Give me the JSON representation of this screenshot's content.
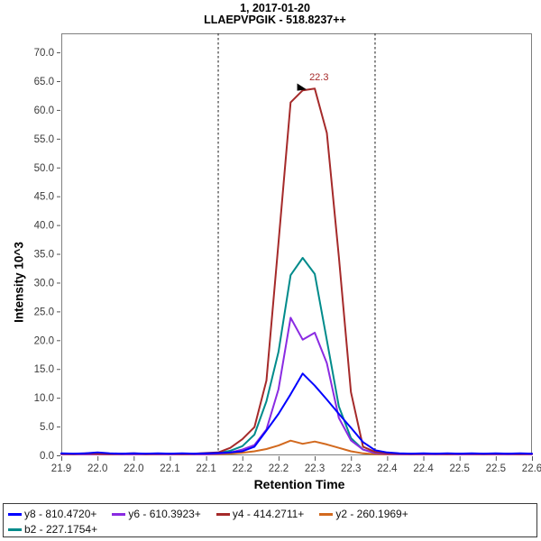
{
  "title": {
    "line1": "1, 2017-01-20",
    "line2": "LLAEPVPGIK - 518.8237++"
  },
  "axes": {
    "x": {
      "label": "Retention Time",
      "min": 21.9,
      "max": 22.55,
      "tick_step": 0.05,
      "tick_labels": [
        "21.9",
        "22.0",
        "22.0",
        "22.1",
        "22.1",
        "22.2",
        "22.2",
        "22.3",
        "22.3",
        "22.4",
        "22.4",
        "22.5",
        "22.5",
        "22.6"
      ]
    },
    "y": {
      "label": "Intensity 10^3",
      "min": 0,
      "max": 73.3,
      "tick_step": 5,
      "tick_labels": [
        "0.0",
        "5.0",
        "10.0",
        "15.0",
        "20.0",
        "25.0",
        "30.0",
        "35.0",
        "40.0",
        "45.0",
        "50.0",
        "55.0",
        "60.0",
        "65.0",
        "70.0"
      ]
    }
  },
  "annotation": {
    "text": "22.3",
    "rt": 22.25,
    "value": 63.7,
    "color": "#A52A2A",
    "marker_color": "#000000"
  },
  "peak_boundaries": {
    "start": 22.1167,
    "end": 22.3333,
    "color": "#1a1a1a",
    "style": "dashed"
  },
  "legend": {
    "items": [
      {
        "id": "y8",
        "label": "y8 - 810.4720+",
        "color": "#0000FF",
        "row": 1
      },
      {
        "id": "y6",
        "label": "y6 - 610.3923+",
        "color": "#8A2BE2",
        "row": 1
      },
      {
        "id": "y4",
        "label": "y4 - 414.2711+",
        "color": "#A52A2A",
        "row": 1
      },
      {
        "id": "y2",
        "label": "y2 - 260.1969+",
        "color": "#D2691E",
        "row": 1
      },
      {
        "id": "b2",
        "label": "b2 - 227.1754+",
        "color": "#008B8B",
        "row": 2
      }
    ]
  },
  "chart_data": {
    "type": "line",
    "title": "1, 2017-01-20 / LLAEPVPGIK - 518.8237++",
    "xlabel": "Retention Time",
    "ylabel": "Intensity 10^3",
    "xlim": [
      21.9,
      22.55
    ],
    "ylim": [
      0,
      73.3
    ],
    "grid": false,
    "legend_position": "bottom",
    "x": [
      21.9,
      21.9167,
      21.9333,
      21.95,
      21.9667,
      21.9833,
      22.0,
      22.0167,
      22.0333,
      22.05,
      22.0667,
      22.0833,
      22.1,
      22.1167,
      22.1333,
      22.15,
      22.1667,
      22.1833,
      22.2,
      22.2167,
      22.2333,
      22.25,
      22.2667,
      22.2833,
      22.3,
      22.3167,
      22.3333,
      22.35,
      22.3667,
      22.3833,
      22.4,
      22.4167,
      22.4333,
      22.45,
      22.4667,
      22.4833,
      22.5,
      22.5167,
      22.5333,
      22.55
    ],
    "series": [
      {
        "name": "y8 - 810.4720+",
        "color": "#0000FF",
        "values": [
          0.35,
          0.3,
          0.35,
          0.5,
          0.35,
          0.3,
          0.35,
          0.3,
          0.35,
          0.3,
          0.35,
          0.3,
          0.35,
          0.4,
          0.5,
          0.7,
          1.5,
          4.3,
          7.2,
          10.6,
          14.2,
          12.1,
          9.7,
          7.2,
          4.8,
          2.3,
          0.9,
          0.5,
          0.35,
          0.3,
          0.35,
          0.3,
          0.35,
          0.3,
          0.35,
          0.3,
          0.35,
          0.3,
          0.35,
          0.3
        ]
      },
      {
        "name": "y6 - 610.3923+",
        "color": "#8A2BE2",
        "values": [
          0.2,
          0.2,
          0.2,
          0.2,
          0.2,
          0.2,
          0.2,
          0.2,
          0.2,
          0.2,
          0.2,
          0.2,
          0.2,
          0.3,
          0.5,
          1.0,
          1.8,
          4.5,
          11.5,
          23.9,
          20.1,
          21.3,
          16.0,
          6.5,
          2.6,
          1.0,
          0.4,
          0.25,
          0.2,
          0.2,
          0.2,
          0.2,
          0.2,
          0.2,
          0.2,
          0.2,
          0.2,
          0.2,
          0.2,
          0.2
        ]
      },
      {
        "name": "y4 - 414.2711+",
        "color": "#A52A2A",
        "values": [
          0.3,
          0.25,
          0.35,
          0.3,
          0.25,
          0.3,
          0.35,
          0.25,
          0.3,
          0.3,
          0.25,
          0.3,
          0.4,
          0.5,
          1.3,
          2.8,
          4.9,
          13.0,
          37.0,
          61.3,
          63.4,
          63.7,
          56.0,
          34.5,
          11.0,
          1.5,
          0.6,
          0.35,
          0.3,
          0.25,
          0.3,
          0.3,
          0.25,
          0.3,
          0.3,
          0.25,
          0.3,
          0.3,
          0.25,
          0.3
        ]
      },
      {
        "name": "y2 - 260.1969+",
        "color": "#D2691E",
        "values": [
          0.15,
          0.15,
          0.15,
          0.15,
          0.15,
          0.15,
          0.15,
          0.15,
          0.15,
          0.15,
          0.15,
          0.15,
          0.15,
          0.2,
          0.3,
          0.45,
          0.7,
          1.1,
          1.7,
          2.55,
          2.0,
          2.4,
          1.9,
          1.3,
          0.7,
          0.35,
          0.2,
          0.15,
          0.15,
          0.15,
          0.15,
          0.15,
          0.15,
          0.15,
          0.15,
          0.15,
          0.15,
          0.15,
          0.15,
          0.15
        ]
      },
      {
        "name": "b2 - 227.1754+",
        "color": "#008B8B",
        "values": [
          0.25,
          0.25,
          0.25,
          0.25,
          0.25,
          0.25,
          0.25,
          0.25,
          0.25,
          0.25,
          0.25,
          0.25,
          0.25,
          0.4,
          0.8,
          1.6,
          3.6,
          9.4,
          18.0,
          31.3,
          34.3,
          31.5,
          20.0,
          8.5,
          3.0,
          1.0,
          0.4,
          0.3,
          0.25,
          0.25,
          0.25,
          0.25,
          0.25,
          0.25,
          0.25,
          0.25,
          0.25,
          0.25,
          0.25,
          0.25
        ]
      }
    ]
  }
}
